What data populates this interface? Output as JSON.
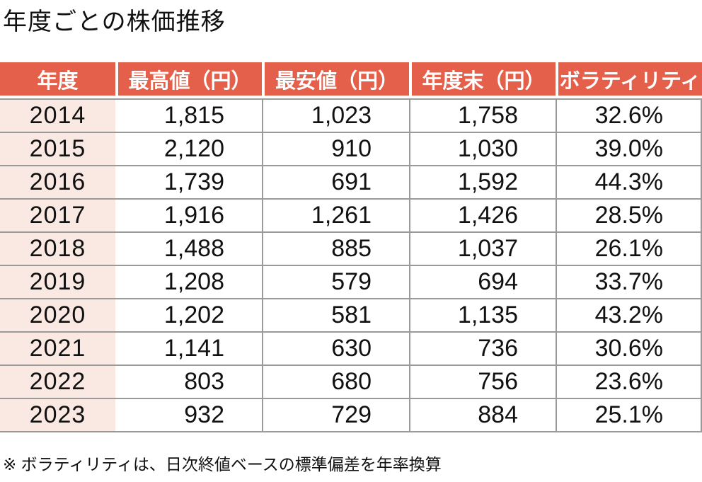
{
  "title": "年度ごとの株価推移",
  "table": {
    "columns": [
      "年度",
      "最高値（円）",
      "最安値（円）",
      "年度末（円）",
      "ボラティリティ"
    ],
    "rows": [
      [
        "2014",
        "1,815",
        "1,023",
        "1,758",
        "32.6%"
      ],
      [
        "2015",
        "2,120",
        "910",
        "1,030",
        "39.0%"
      ],
      [
        "2016",
        "1,739",
        "691",
        "1,592",
        "44.3%"
      ],
      [
        "2017",
        "1,916",
        "1,261",
        "1,426",
        "28.5%"
      ],
      [
        "2018",
        "1,488",
        "885",
        "1,037",
        "26.1%"
      ],
      [
        "2019",
        "1,208",
        "579",
        "694",
        "33.7%"
      ],
      [
        "2020",
        "1,202",
        "581",
        "1,135",
        "43.2%"
      ],
      [
        "2021",
        "1,141",
        "630",
        "736",
        "30.6%"
      ],
      [
        "2022",
        "803",
        "680",
        "756",
        "23.6%"
      ],
      [
        "2023",
        "932",
        "729",
        "884",
        "25.1%"
      ]
    ]
  },
  "footnote": "※ ボラティリティは、日次終値ベースの標準偏差を年率換算",
  "colors": {
    "header_bg": "#E5604B",
    "header_text": "#FFFFFF",
    "year_column_bg": "#FAE9E3",
    "grid_line": "#9A9A9A",
    "body_text": "#111111"
  },
  "chart_data": {
    "type": "table",
    "title": "年度ごとの株価推移",
    "columns": [
      "年度",
      "最高値（円）",
      "最安値（円）",
      "年度末（円）",
      "ボラティリティ"
    ],
    "years": [
      2014,
      2015,
      2016,
      2017,
      2018,
      2019,
      2020,
      2021,
      2022,
      2023
    ],
    "series": [
      {
        "name": "最高値（円）",
        "values": [
          1815,
          2120,
          1739,
          1916,
          1488,
          1208,
          1202,
          1141,
          803,
          932
        ]
      },
      {
        "name": "最安値（円）",
        "values": [
          1023,
          910,
          691,
          1261,
          885,
          579,
          581,
          630,
          680,
          729
        ]
      },
      {
        "name": "年度末（円）",
        "values": [
          1758,
          1030,
          1592,
          1426,
          1037,
          694,
          1135,
          736,
          756,
          884
        ]
      },
      {
        "name": "ボラティリティ(%)",
        "values": [
          32.6,
          39.0,
          44.3,
          28.5,
          26.1,
          33.7,
          43.2,
          30.6,
          23.6,
          25.1
        ]
      }
    ],
    "footnote": "※ ボラティリティは、日次終値ベースの標準偏差を年率換算"
  }
}
